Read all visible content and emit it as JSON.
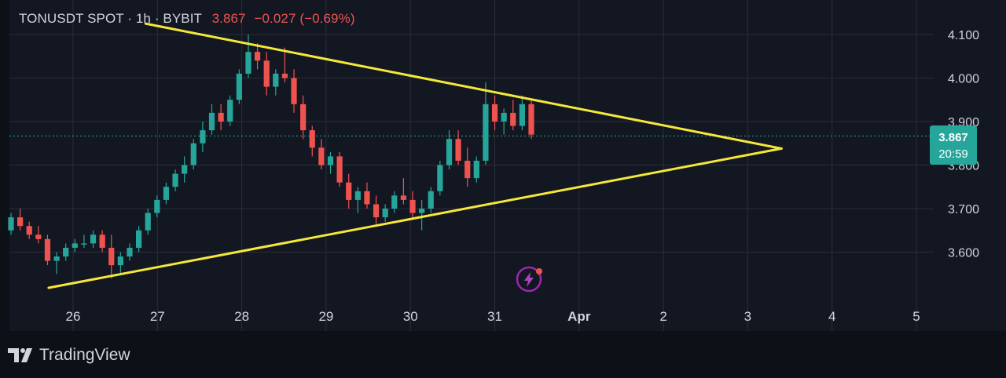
{
  "header": {
    "symbol": "TONUSDT SPOT",
    "interval": "1h",
    "exchange": "BYBIT",
    "last_price": "3.867",
    "change": "−0.027 (−0.69%)"
  },
  "price_tag": {
    "price": "3.867",
    "countdown": "20:59",
    "color": "#26a69a"
  },
  "footer": {
    "brand": "TradingView"
  },
  "icons": {
    "bolt": "lightning-bolt-icon",
    "logo": "tradingview-logo-icon"
  },
  "colors": {
    "up": "#26a69a",
    "down": "#ef5350",
    "trendline": "#f5e83a",
    "background": "#131722",
    "grid": "#2a2e39",
    "text": "#d1d4dc"
  },
  "chart_data": {
    "type": "candlestick",
    "title": "TONUSDT SPOT · 1h · BYBIT",
    "ylim": [
      3.52,
      4.12
    ],
    "y_ticks": [
      "4.100",
      "4.000",
      "3.900",
      "3.800",
      "3.700",
      "3.600"
    ],
    "x_ticks": [
      "26",
      "27",
      "28",
      "29",
      "30",
      "31",
      "Apr",
      "2",
      "3",
      "4",
      "5"
    ],
    "x_unit": "days (March 25 – April 5, hourly candles)",
    "last_price": 3.867,
    "candles": [
      [
        3.65,
        3.69,
        3.64,
        3.68
      ],
      [
        3.68,
        3.7,
        3.65,
        3.66
      ],
      [
        3.66,
        3.67,
        3.63,
        3.64
      ],
      [
        3.64,
        3.66,
        3.62,
        3.63
      ],
      [
        3.63,
        3.64,
        3.57,
        3.58
      ],
      [
        3.58,
        3.6,
        3.55,
        3.59
      ],
      [
        3.59,
        3.62,
        3.58,
        3.61
      ],
      [
        3.61,
        3.63,
        3.6,
        3.62
      ],
      [
        3.62,
        3.64,
        3.61,
        3.62
      ],
      [
        3.62,
        3.65,
        3.61,
        3.64
      ],
      [
        3.64,
        3.65,
        3.6,
        3.61
      ],
      [
        3.61,
        3.64,
        3.54,
        3.57
      ],
      [
        3.57,
        3.6,
        3.55,
        3.59
      ],
      [
        3.59,
        3.62,
        3.58,
        3.61
      ],
      [
        3.61,
        3.66,
        3.6,
        3.65
      ],
      [
        3.65,
        3.7,
        3.64,
        3.69
      ],
      [
        3.69,
        3.73,
        3.68,
        3.72
      ],
      [
        3.72,
        3.76,
        3.71,
        3.75
      ],
      [
        3.75,
        3.79,
        3.74,
        3.78
      ],
      [
        3.78,
        3.82,
        3.76,
        3.8
      ],
      [
        3.8,
        3.86,
        3.79,
        3.85
      ],
      [
        3.85,
        3.9,
        3.83,
        3.88
      ],
      [
        3.88,
        3.94,
        3.87,
        3.92
      ],
      [
        3.92,
        3.94,
        3.88,
        3.9
      ],
      [
        3.9,
        3.96,
        3.89,
        3.95
      ],
      [
        3.95,
        4.02,
        3.94,
        4.01
      ],
      [
        4.01,
        4.1,
        4.0,
        4.06
      ],
      [
        4.06,
        4.08,
        4.02,
        4.04
      ],
      [
        4.04,
        4.06,
        3.96,
        3.98
      ],
      [
        3.98,
        4.02,
        3.96,
        4.01
      ],
      [
        4.01,
        4.07,
        3.99,
        4.0
      ],
      [
        4.0,
        4.02,
        3.92,
        3.94
      ],
      [
        3.94,
        3.96,
        3.86,
        3.88
      ],
      [
        3.88,
        3.89,
        3.82,
        3.84
      ],
      [
        3.84,
        3.86,
        3.79,
        3.8
      ],
      [
        3.8,
        3.83,
        3.78,
        3.82
      ],
      [
        3.82,
        3.83,
        3.75,
        3.76
      ],
      [
        3.76,
        3.78,
        3.7,
        3.72
      ],
      [
        3.72,
        3.75,
        3.69,
        3.74
      ],
      [
        3.74,
        3.76,
        3.7,
        3.71
      ],
      [
        3.71,
        3.73,
        3.66,
        3.68
      ],
      [
        3.68,
        3.71,
        3.67,
        3.7
      ],
      [
        3.7,
        3.74,
        3.69,
        3.73
      ],
      [
        3.73,
        3.77,
        3.71,
        3.72
      ],
      [
        3.72,
        3.74,
        3.68,
        3.69
      ],
      [
        3.69,
        3.72,
        3.65,
        3.7
      ],
      [
        3.7,
        3.75,
        3.69,
        3.74
      ],
      [
        3.74,
        3.81,
        3.73,
        3.8
      ],
      [
        3.8,
        3.88,
        3.79,
        3.86
      ],
      [
        3.86,
        3.88,
        3.8,
        3.81
      ],
      [
        3.81,
        3.84,
        3.75,
        3.77
      ],
      [
        3.77,
        3.82,
        3.76,
        3.81
      ],
      [
        3.81,
        3.99,
        3.8,
        3.94
      ],
      [
        3.94,
        3.96,
        3.88,
        3.9
      ],
      [
        3.9,
        3.93,
        3.87,
        3.92
      ],
      [
        3.92,
        3.95,
        3.88,
        3.89
      ],
      [
        3.89,
        3.96,
        3.88,
        3.94
      ],
      [
        3.94,
        3.95,
        3.86,
        3.87
      ]
    ],
    "trendlines": [
      {
        "name": "upper",
        "from": [
          "26.86",
          4.125
        ],
        "to": [
          "Apr 3.40",
          3.838
        ]
      },
      {
        "name": "lower",
        "from": [
          "25.71",
          3.518
        ],
        "to": [
          "Apr 3.40",
          3.838
        ]
      }
    ]
  }
}
